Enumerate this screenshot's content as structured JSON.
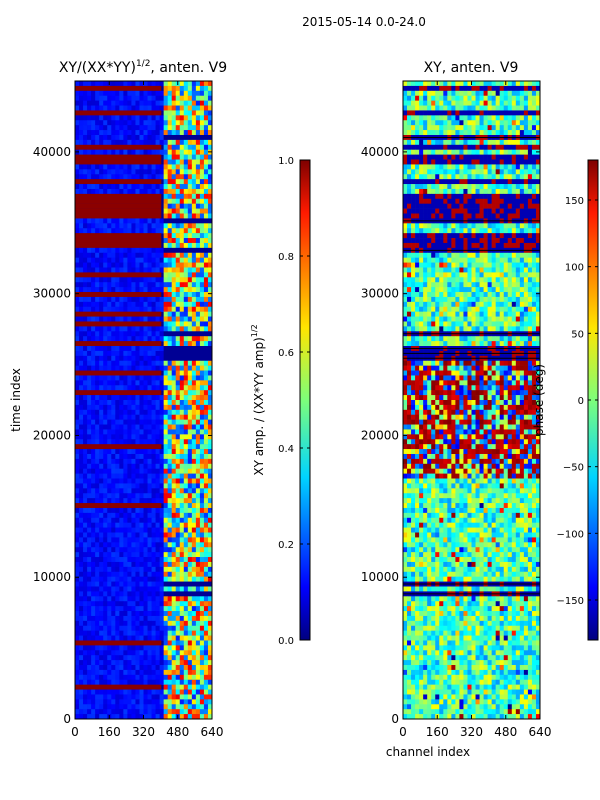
{
  "chart_data": {
    "suptitle": "2015-05-14 0.0-24.0",
    "panels": [
      {
        "type": "heatmap",
        "title_main": "XY/(XX*YY)",
        "title_sup": "1/2",
        "title_tail": ", anten. V9",
        "ylabel": "time index",
        "xlim": [
          0,
          640
        ],
        "ylim": [
          0,
          45000
        ],
        "xticks": [
          0,
          160,
          320,
          480,
          640
        ],
        "yticks": [
          0,
          10000,
          20000,
          30000,
          40000
        ],
        "colorbar": {
          "label_main": "XY amp. / (XX*YY amp)",
          "label_sup": "1/2",
          "range": [
            0.0,
            1.0
          ],
          "ticks": [
            "0.0",
            "0.2",
            "0.4",
            "0.6",
            "0.8",
            "1.0"
          ],
          "tick_values": [
            0.0,
            0.2,
            0.4,
            0.6,
            0.8,
            1.0
          ]
        }
      },
      {
        "type": "heatmap",
        "title": "XY, anten. V9",
        "xlabel": "channel index",
        "xlim": [
          0,
          640
        ],
        "ylim": [
          0,
          45000
        ],
        "xticks": [
          0,
          160,
          320,
          480,
          640
        ],
        "yticks": [
          0,
          10000,
          20000,
          30000,
          40000
        ],
        "colorbar": {
          "label": "phase (deg)",
          "range": [
            -180,
            180
          ],
          "ticks": [
            "−150",
            "−100",
            "−50",
            "0",
            "50",
            "100",
            "150"
          ],
          "tick_values": [
            -150,
            -100,
            -50,
            0,
            50,
            100,
            150
          ]
        }
      }
    ]
  },
  "colors": {
    "jet_low": "#00007f",
    "jet_high": "#7f0000",
    "saturated_band": "#8b0000",
    "flag_line": "#000000"
  }
}
